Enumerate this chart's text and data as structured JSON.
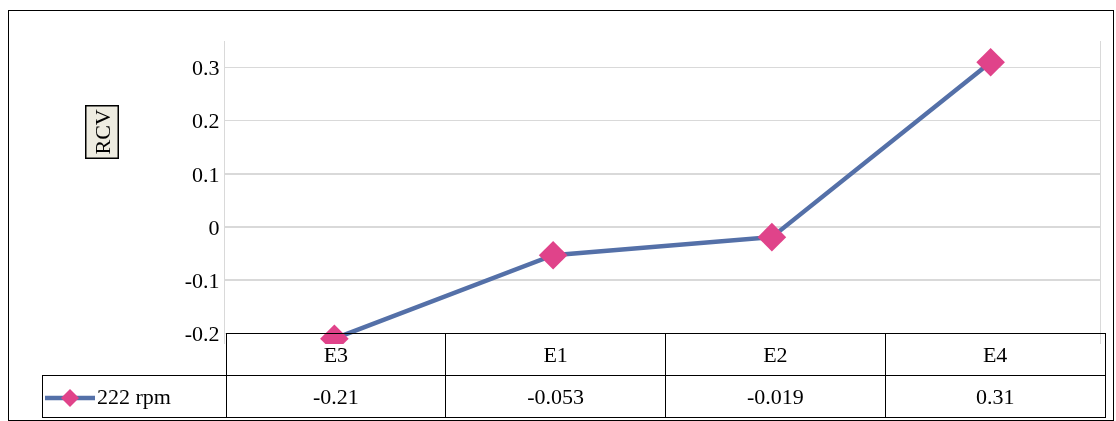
{
  "chart_data": {
    "type": "line",
    "ylabel": "RCV",
    "categories": [
      "E3",
      "E1",
      "E2",
      "E4"
    ],
    "series": [
      {
        "name": "222 rpm",
        "color": "#5470a8",
        "colors": [
          "#e0438a",
          "#e0438a",
          "#e0438a",
          "#e0438a"
        ],
        "values": [
          -0.21,
          -0.053,
          -0.019,
          0.31
        ]
      }
    ],
    "ylim": [
      -0.22,
      0.35
    ],
    "yticks": [
      -0.2,
      -0.1,
      0,
      0.1,
      0.2,
      0.3
    ],
    "grid": "y",
    "marker": "diamond",
    "line_style": "solid",
    "data_labels": true,
    "legend": "bottom"
  }
}
